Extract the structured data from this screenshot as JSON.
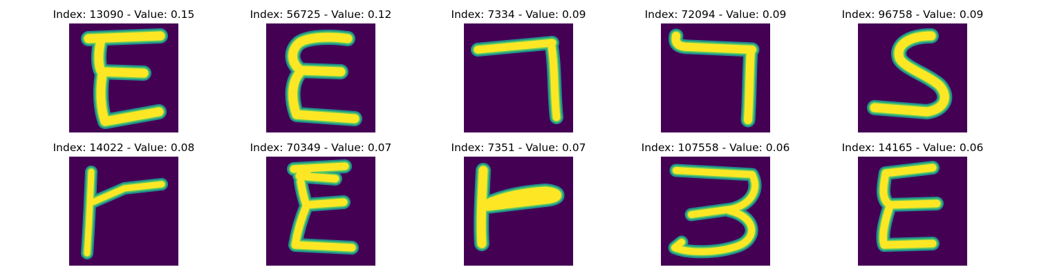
{
  "colors": {
    "background": "#440154",
    "stroke_edge": "#21918c",
    "stroke_mid": "#5ec962",
    "stroke_core": "#fde725"
  },
  "panels": [
    {
      "title": "Index: 13090 - Value: 0.15",
      "glyph": "E"
    },
    {
      "title": "Index: 56725 - Value: 0.12",
      "glyph": "E"
    },
    {
      "title": "Index: 7334 - Value: 0.09",
      "glyph": "7"
    },
    {
      "title": "Index: 72094 - Value: 0.09",
      "glyph": "7"
    },
    {
      "title": "Index: 96758 - Value: 0.09",
      "glyph": "S"
    },
    {
      "title": "Index: 14022 - Value: 0.08",
      "glyph": "F-rotated"
    },
    {
      "title": "Index: 70349 - Value: 0.07",
      "glyph": "E"
    },
    {
      "title": "Index: 7351 - Value: 0.07",
      "glyph": "F-rotated"
    },
    {
      "title": "Index: 107558 - Value: 0.06",
      "glyph": "3"
    },
    {
      "title": "Index: 14165 - Value: 0.06",
      "glyph": "E"
    }
  ]
}
